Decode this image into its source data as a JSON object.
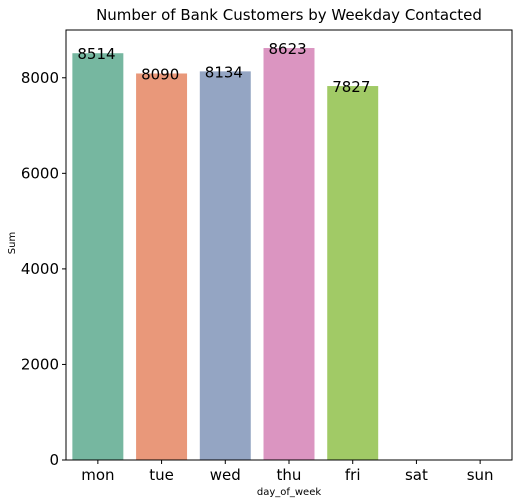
{
  "chart_data": {
    "type": "bar",
    "title": "Number of Bank Customers by Weekday Contacted",
    "xlabel": "day_of_week",
    "ylabel": "Sum",
    "categories": [
      "mon",
      "tue",
      "wed",
      "thu",
      "fri",
      "sat",
      "sun"
    ],
    "values": [
      8514,
      8090,
      8134,
      8623,
      7827,
      0,
      0
    ],
    "data_labels": [
      "8514",
      "8090",
      "8134",
      "8623",
      "7827",
      "",
      ""
    ],
    "colors": [
      "#76b7a0",
      "#e9987a",
      "#94a5c3",
      "#db95c1",
      "#a1ca66",
      "#e6d65a",
      "#e6c494"
    ],
    "yticks": [
      0,
      2000,
      4000,
      6000,
      8000
    ],
    "ylim": [
      0,
      9000
    ],
    "grid": false,
    "legend": "none"
  }
}
